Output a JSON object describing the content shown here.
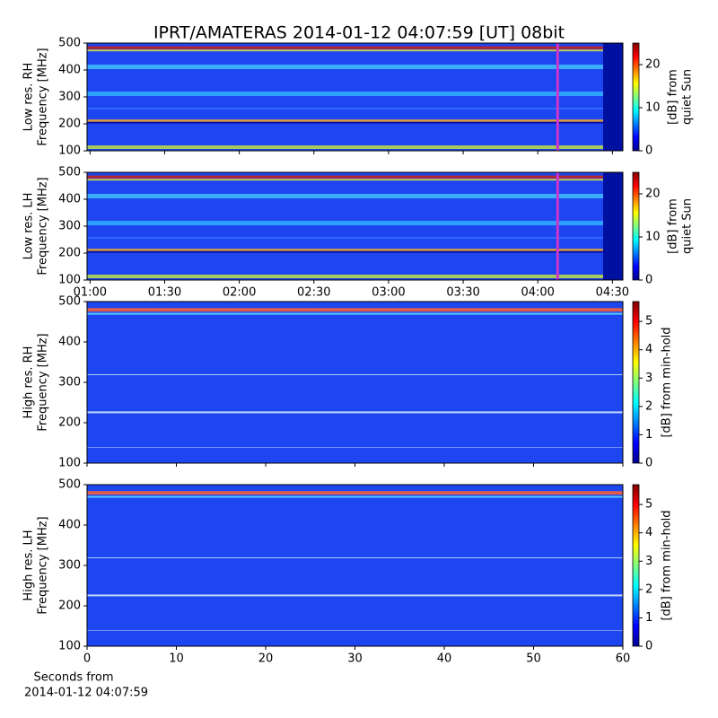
{
  "title": "IPRT/AMATERAS 2014-01-12 04:07:59 [UT]   08bit",
  "xlabel": [
    "Seconds from",
    "2014-01-12 04:07:59"
  ],
  "chart_data": [
    {
      "type": "heatmap",
      "ylabel": [
        "Low res. RH",
        "Frequency [MHz]"
      ],
      "ylim": [
        100,
        500
      ],
      "yticks": [
        100,
        200,
        300,
        400,
        500
      ],
      "xlim": [
        0.98,
        4.57
      ],
      "xticks": [
        1,
        1.5,
        2,
        2.5,
        3,
        3.5,
        4,
        4.5
      ],
      "xtick_labels": false,
      "marker": {
        "x": 4.133,
        "color": "#cc33cc"
      },
      "colorbar": {
        "label": [
          "[dB] from",
          "quiet Sun"
        ],
        "lim": [
          0,
          25
        ],
        "ticks": [
          0,
          10,
          20
        ]
      }
    },
    {
      "type": "heatmap",
      "ylabel": [
        "Low res. LH",
        "Frequency [MHz]"
      ],
      "ylim": [
        100,
        500
      ],
      "yticks": [
        100,
        200,
        300,
        400,
        500
      ],
      "xlim": [
        0.98,
        4.57
      ],
      "xticks": [
        {
          "value": 1,
          "label": "01:00"
        },
        {
          "value": 1.5,
          "label": "01:30"
        },
        {
          "value": 2,
          "label": "02:00"
        },
        {
          "value": 2.5,
          "label": "02:30"
        },
        {
          "value": 3,
          "label": "03:00"
        },
        {
          "value": 3.5,
          "label": "03:30"
        },
        {
          "value": 4,
          "label": "04:00"
        },
        {
          "value": 4.5,
          "label": "04:30"
        }
      ],
      "xtick_labels": true,
      "marker": {
        "x": 4.133,
        "color": "#cc33cc"
      },
      "colorbar": {
        "label": [
          "[dB] from",
          "quiet Sun"
        ],
        "lim": [
          0,
          25
        ],
        "ticks": [
          0,
          10,
          20
        ]
      }
    },
    {
      "type": "heatmap",
      "ylabel": [
        "High res. RH",
        "Frequency [MHz]"
      ],
      "ylim": [
        100,
        500
      ],
      "yticks": [
        100,
        200,
        300,
        400,
        500
      ],
      "xlim": [
        0,
        60
      ],
      "xticks": [
        0,
        10,
        20,
        30,
        40,
        50,
        60
      ],
      "xtick_labels": false,
      "colorbar": {
        "label": [
          "[dB] from min-hold"
        ],
        "lim": [
          0,
          5.7
        ],
        "ticks": [
          0,
          1,
          2,
          3,
          4,
          5
        ]
      }
    },
    {
      "type": "heatmap",
      "ylabel": [
        "High res. LH",
        "Frequency [MHz]"
      ],
      "ylim": [
        100,
        500
      ],
      "yticks": [
        100,
        200,
        300,
        400,
        500
      ],
      "xlim": [
        0,
        60
      ],
      "xticks": [
        0,
        10,
        20,
        30,
        40,
        50,
        60
      ],
      "xtick_labels": true,
      "colorbar": {
        "label": [
          "[dB] from min-hold"
        ],
        "lim": [
          0,
          5.7
        ],
        "ticks": [
          0,
          1,
          2,
          3,
          4,
          5
        ]
      }
    }
  ]
}
